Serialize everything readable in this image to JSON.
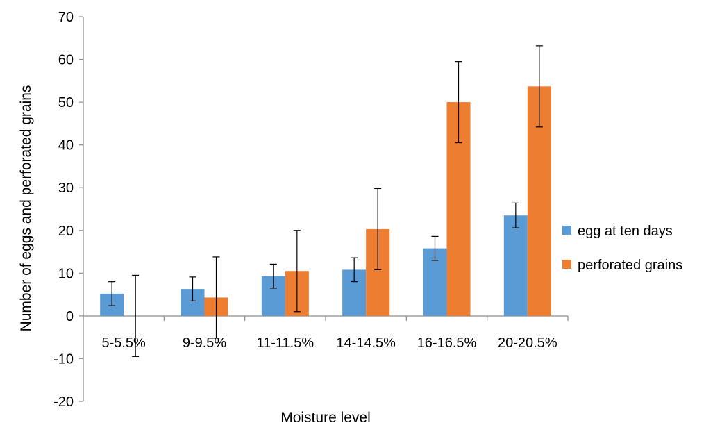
{
  "chart_data": {
    "type": "bar",
    "title": "",
    "xlabel": "Moisture level",
    "ylabel": "Number of eggs and perforated grains",
    "ylim": [
      -20,
      70
    ],
    "yticks": [
      -20,
      -10,
      0,
      10,
      20,
      30,
      40,
      50,
      60,
      70
    ],
    "categories": [
      "5-5.5%",
      "9-9.5%",
      "11-11.5%",
      "14-14.5%",
      "16-16.5%",
      "20-20.5%"
    ],
    "series": [
      {
        "name": "egg at ten days",
        "color": "#5B9BD5",
        "values": [
          5.2,
          6.3,
          9.3,
          10.8,
          15.8,
          23.5
        ],
        "errors": [
          2.8,
          2.8,
          2.8,
          2.8,
          2.8,
          2.9
        ]
      },
      {
        "name": "perforated grains",
        "color": "#ED7D31",
        "values": [
          0,
          4.3,
          10.5,
          20.3,
          50.0,
          53.7
        ],
        "errors": [
          9.5,
          9.5,
          9.5,
          9.5,
          9.5,
          9.5
        ]
      }
    ],
    "grid": false,
    "legend_position": "right"
  }
}
